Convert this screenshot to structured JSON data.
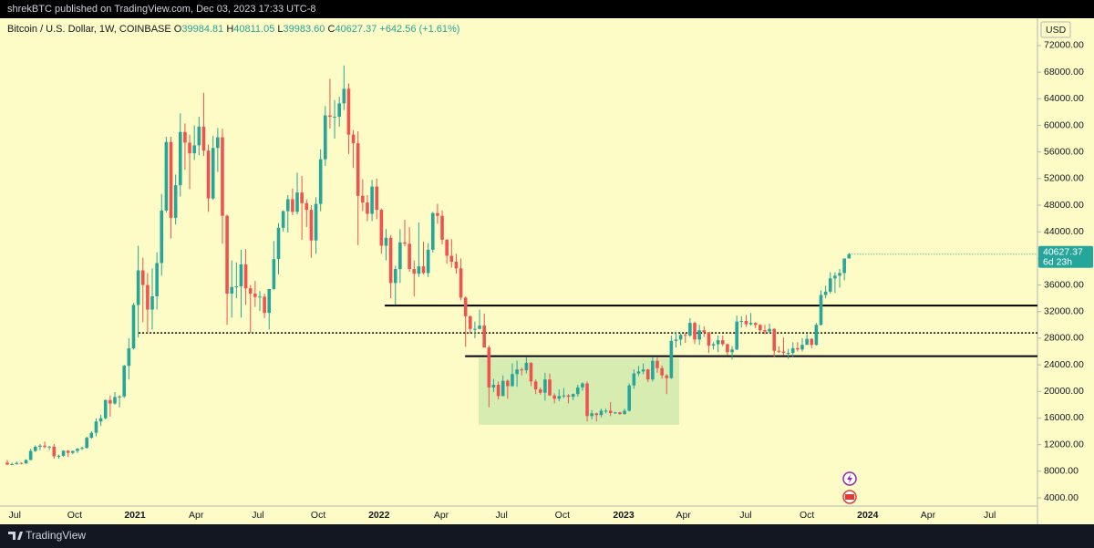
{
  "header": "shrekBTC published on TradingView.com, Dec 03, 2023 17:33 UTC-8",
  "footer": "TradingView",
  "chart_data": {
    "type": "candlestick",
    "legend": {
      "symbol": "Bitcoin / U.S. Dollar, 1W, COINBASE",
      "o": "O",
      "h": "H",
      "l": "L",
      "c": "C",
      "change": "+642.56 (+1.61%)"
    },
    "ohlc_labels": [
      "39984.81",
      "40811.05",
      "39983.60",
      "40627.37"
    ],
    "currency": "USD",
    "countdown": "6d 23h",
    "up_color": "#26a69a",
    "down_color": "#ef5350",
    "xlim": [
      -1.56,
      220.3
    ],
    "xticks": [
      {
        "value": 1.6,
        "label": "Jul"
      },
      {
        "value": 14.4,
        "label": "Oct"
      },
      {
        "value": 27.3,
        "label": "2021"
      },
      {
        "value": 40.4,
        "label": "Apr"
      },
      {
        "value": 53.6,
        "label": "Jul"
      },
      {
        "value": 66.5,
        "label": "Oct"
      },
      {
        "value": 79.5,
        "label": "2022"
      },
      {
        "value": 92.8,
        "label": "Apr"
      },
      {
        "value": 105.7,
        "label": "Jul"
      },
      {
        "value": 118.7,
        "label": "Oct"
      },
      {
        "value": 131.8,
        "label": "2023"
      },
      {
        "value": 144.6,
        "label": "Apr"
      },
      {
        "value": 157.9,
        "label": "Jul"
      },
      {
        "value": 171.0,
        "label": "Oct"
      },
      {
        "value": 184.0,
        "label": "2024"
      },
      {
        "value": 196.9,
        "label": "Apr"
      },
      {
        "value": 210.1,
        "label": "Jul"
      }
    ],
    "ylim": [
      2766,
      76104
    ],
    "yticks": [
      {
        "value": 4000,
        "label": "4000.00"
      },
      {
        "value": 8000,
        "label": "8000.00"
      },
      {
        "value": 12000,
        "label": "12000.00"
      },
      {
        "value": 16000,
        "label": "16000.00"
      },
      {
        "value": 20000,
        "label": "20000.00"
      },
      {
        "value": 24000,
        "label": "24000.00"
      },
      {
        "value": 28000,
        "label": "28000.00"
      },
      {
        "value": 32000,
        "label": "32000.00"
      },
      {
        "value": 36000,
        "label": "36000.00"
      },
      {
        "value": 40000,
        "label": "40000.00"
      },
      {
        "value": 44000,
        "label": "44000.00"
      },
      {
        "value": 48000,
        "label": "48000.00"
      },
      {
        "value": 52000,
        "label": "52000.00"
      },
      {
        "value": 56000,
        "label": "56000.00"
      },
      {
        "value": 60000,
        "label": "60000.00"
      },
      {
        "value": 64000,
        "label": "64000.00"
      },
      {
        "value": 68000,
        "label": "68000.00"
      },
      {
        "value": 72000,
        "label": "72000.00"
      }
    ],
    "levels": [
      {
        "value": 32900,
        "from": 80.7,
        "style": "solid"
      },
      {
        "value": 25300,
        "from": 97.9,
        "style": "solid"
      },
      {
        "value": 28800,
        "from": 28.1,
        "style": "dotted"
      }
    ],
    "zone": {
      "x": [
        100.8,
        143.7
      ],
      "y": [
        15000,
        25000
      ],
      "color": "#d7ecb0"
    },
    "candles": [
      [
        9300,
        9700,
        8900,
        9000
      ],
      [
        9000,
        9300,
        8900,
        9070
      ],
      [
        9070,
        9450,
        9000,
        9250
      ],
      [
        9250,
        9300,
        9050,
        9170
      ],
      [
        9170,
        9800,
        9100,
        9700
      ],
      [
        9700,
        11400,
        9650,
        11050
      ],
      [
        11050,
        11900,
        10900,
        11680
      ],
      [
        11680,
        12100,
        11150,
        11850
      ],
      [
        11850,
        12450,
        11450,
        11650
      ],
      [
        11650,
        11800,
        11200,
        11700
      ],
      [
        11700,
        12100,
        9900,
        10250
      ],
      [
        10250,
        10500,
        9900,
        10330
      ],
      [
        10330,
        11150,
        10200,
        11080
      ],
      [
        11080,
        11200,
        10150,
        10770
      ],
      [
        10770,
        11100,
        10550,
        11050
      ],
      [
        11050,
        11500,
        10750,
        11380
      ],
      [
        11380,
        11700,
        11200,
        11510
      ],
      [
        11510,
        13200,
        11400,
        13030
      ],
      [
        13030,
        14000,
        12900,
        13780
      ],
      [
        13780,
        15950,
        13250,
        15480
      ],
      [
        15480,
        16500,
        14800,
        15960
      ],
      [
        15960,
        18800,
        15800,
        18700
      ],
      [
        18700,
        19400,
        16200,
        18180
      ],
      [
        18180,
        19900,
        18000,
        19150
      ],
      [
        19150,
        19400,
        17600,
        19250
      ],
      [
        19250,
        24000,
        19000,
        23850
      ],
      [
        23850,
        28000,
        21800,
        26480
      ],
      [
        26480,
        33300,
        26300,
        33000
      ],
      [
        33000,
        41900,
        28100,
        38200
      ],
      [
        38200,
        40100,
        30400,
        36000
      ],
      [
        36000,
        37800,
        28800,
        32300
      ],
      [
        32300,
        38500,
        29300,
        34300
      ],
      [
        34300,
        40900,
        32300,
        39300
      ],
      [
        39300,
        49700,
        37400,
        47200
      ],
      [
        47200,
        58300,
        46900,
        57500
      ],
      [
        57500,
        58300,
        43000,
        46100
      ],
      [
        46100,
        52600,
        45100,
        51000
      ],
      [
        51000,
        61800,
        49300,
        59000
      ],
      [
        59000,
        60300,
        53300,
        57400
      ],
      [
        57400,
        58600,
        50400,
        55800
      ],
      [
        55800,
        60000,
        54800,
        57000
      ],
      [
        57000,
        61300,
        55500,
        59800
      ],
      [
        59800,
        64900,
        55400,
        56200
      ],
      [
        56200,
        57100,
        47000,
        49000
      ],
      [
        49000,
        58400,
        48800,
        56600
      ],
      [
        56600,
        59600,
        53000,
        58200
      ],
      [
        58200,
        59500,
        42200,
        46400
      ],
      [
        46400,
        46600,
        30000,
        34700
      ],
      [
        34700,
        39700,
        31100,
        35700
      ],
      [
        35700,
        39400,
        34000,
        35800
      ],
      [
        35800,
        41300,
        31100,
        39100
      ],
      [
        39100,
        41400,
        33000,
        35500
      ],
      [
        35500,
        36000,
        28800,
        34700
      ],
      [
        34700,
        36600,
        32700,
        34200
      ],
      [
        34200,
        35100,
        32100,
        34250
      ],
      [
        34250,
        34700,
        31000,
        31800
      ],
      [
        31800,
        35400,
        29300,
        35400
      ],
      [
        35400,
        42600,
        35300,
        39900
      ],
      [
        39900,
        45300,
        37600,
        44600
      ],
      [
        44600,
        47200,
        44000,
        47100
      ],
      [
        47100,
        49500,
        43900,
        48900
      ],
      [
        48900,
        50500,
        46500,
        47000
      ],
      [
        47000,
        52900,
        46600,
        49900
      ],
      [
        49900,
        52400,
        42800,
        48300
      ],
      [
        48300,
        48900,
        44700,
        47300
      ],
      [
        47300,
        48000,
        40100,
        42700
      ],
      [
        42700,
        49200,
        40700,
        48200
      ],
      [
        48200,
        56400,
        47100,
        54900
      ],
      [
        54900,
        62900,
        53900,
        61500
      ],
      [
        61500,
        67000,
        59500,
        61300
      ],
      [
        61300,
        63800,
        58000,
        61300
      ],
      [
        61300,
        64300,
        59800,
        63300
      ],
      [
        63300,
        69000,
        62300,
        65500
      ],
      [
        65500,
        66300,
        55700,
        58600
      ],
      [
        58600,
        59300,
        53600,
        57300
      ],
      [
        57300,
        59100,
        42000,
        49400
      ],
      [
        49400,
        51900,
        47100,
        48400
      ],
      [
        48400,
        49500,
        45600,
        46700
      ],
      [
        46700,
        51800,
        45600,
        50800
      ],
      [
        50800,
        52000,
        45900,
        47300
      ],
      [
        47300,
        47500,
        40700,
        41900
      ],
      [
        41900,
        44400,
        39700,
        43100
      ],
      [
        43100,
        43500,
        34000,
        36300
      ],
      [
        36300,
        38900,
        33000,
        38400
      ],
      [
        38400,
        44400,
        36300,
        42400
      ],
      [
        42400,
        45800,
        41800,
        42200
      ],
      [
        42200,
        44700,
        38000,
        38400
      ],
      [
        38400,
        39700,
        34300,
        37700
      ],
      [
        37700,
        45400,
        37200,
        38800
      ],
      [
        38800,
        42500,
        37600,
        37800
      ],
      [
        37800,
        42300,
        37200,
        41300
      ],
      [
        41300,
        47000,
        40900,
        46800
      ],
      [
        46800,
        48200,
        45200,
        46400
      ],
      [
        46400,
        47200,
        42100,
        42800
      ],
      [
        42800,
        42900,
        39200,
        40400
      ],
      [
        40400,
        42900,
        38600,
        39500
      ],
      [
        39500,
        40700,
        37700,
        38500
      ],
      [
        38500,
        40000,
        33700,
        34100
      ],
      [
        34100,
        34300,
        26700,
        31300
      ],
      [
        31300,
        31400,
        28700,
        29400
      ],
      [
        29400,
        30500,
        28000,
        29400
      ],
      [
        29400,
        32300,
        29300,
        29900
      ],
      [
        29900,
        31700,
        26600,
        26600
      ],
      [
        26600,
        26900,
        17600,
        20600
      ],
      [
        20600,
        21900,
        19900,
        21000
      ],
      [
        21000,
        21500,
        18800,
        19300
      ],
      [
        19300,
        22400,
        19300,
        21600
      ],
      [
        21600,
        21800,
        18900,
        20800
      ],
      [
        20800,
        24200,
        20700,
        22600
      ],
      [
        22600,
        24600,
        20700,
        23300
      ],
      [
        23300,
        23600,
        22400,
        23200
      ],
      [
        23200,
        25200,
        22700,
        24300
      ],
      [
        24300,
        24400,
        20800,
        21500
      ],
      [
        21500,
        21800,
        19600,
        20300
      ],
      [
        20300,
        20600,
        19500,
        19800
      ],
      [
        19800,
        22800,
        18600,
        21800
      ],
      [
        21800,
        22700,
        19300,
        19400
      ],
      [
        19400,
        19700,
        18200,
        18900
      ],
      [
        18900,
        20300,
        18500,
        19300
      ],
      [
        19300,
        20500,
        19000,
        19400
      ],
      [
        19400,
        19600,
        18200,
        19200
      ],
      [
        19200,
        19700,
        18700,
        19600
      ],
      [
        19600,
        21000,
        19200,
        20600
      ],
      [
        20600,
        21400,
        20100,
        21200
      ],
      [
        21200,
        21500,
        15500,
        16300
      ],
      [
        16300,
        17200,
        15800,
        16700
      ],
      [
        16700,
        16800,
        15500,
        16450
      ],
      [
        16450,
        17400,
        16100,
        17100
      ],
      [
        17100,
        17400,
        16700,
        17100
      ],
      [
        17100,
        18400,
        16300,
        16750
      ],
      [
        16750,
        16950,
        16600,
        16850
      ],
      [
        16850,
        16950,
        16500,
        16600
      ],
      [
        16600,
        17400,
        16500,
        17100
      ],
      [
        17100,
        21200,
        17000,
        20900
      ],
      [
        20900,
        23300,
        20400,
        22700
      ],
      [
        22700,
        23800,
        22300,
        23000
      ],
      [
        23000,
        24200,
        22600,
        23300
      ],
      [
        23300,
        23400,
        21400,
        21800
      ],
      [
        21800,
        25200,
        21500,
        24600
      ],
      [
        24600,
        25100,
        22800,
        23500
      ],
      [
        23500,
        23900,
        21900,
        22400
      ],
      [
        22400,
        22600,
        19600,
        22000
      ],
      [
        22000,
        28400,
        21900,
        27600
      ],
      [
        27600,
        28900,
        26600,
        27800
      ],
      [
        27800,
        28700,
        26900,
        28500
      ],
      [
        28500,
        28800,
        27300,
        28400
      ],
      [
        28400,
        31000,
        28200,
        30300
      ],
      [
        30300,
        30500,
        27100,
        27800
      ],
      [
        27800,
        30000,
        27000,
        29200
      ],
      [
        29200,
        29800,
        28200,
        28900
      ],
      [
        28900,
        28900,
        25800,
        26900
      ],
      [
        26900,
        27400,
        26300,
        27100
      ],
      [
        27100,
        28400,
        25900,
        27700
      ],
      [
        27700,
        28400,
        26800,
        27100
      ],
      [
        27100,
        27200,
        25400,
        25900
      ],
      [
        25900,
        26800,
        24800,
        26300
      ],
      [
        26300,
        31400,
        26200,
        30500
      ],
      [
        30500,
        31300,
        29600,
        30600
      ],
      [
        30600,
        31500,
        29700,
        30100
      ],
      [
        30100,
        31800,
        29900,
        30300
      ],
      [
        30300,
        30400,
        29500,
        30000
      ],
      [
        30000,
        30100,
        28900,
        29200
      ],
      [
        29200,
        30000,
        28600,
        29000
      ],
      [
        29000,
        30200,
        28800,
        29400
      ],
      [
        29400,
        29500,
        25200,
        26100
      ],
      [
        26100,
        26800,
        25800,
        26000
      ],
      [
        26000,
        28100,
        25400,
        25800
      ],
      [
        25800,
        26400,
        24900,
        25800
      ],
      [
        25800,
        27400,
        25100,
        26500
      ],
      [
        26500,
        27400,
        26000,
        26300
      ],
      [
        26300,
        28000,
        26000,
        27000
      ],
      [
        27000,
        28600,
        27000,
        27900
      ],
      [
        27900,
        28000,
        26500,
        27000
      ],
      [
        27000,
        30300,
        26900,
        30000
      ],
      [
        30000,
        35200,
        29900,
        34500
      ],
      [
        34500,
        35900,
        34000,
        35000
      ],
      [
        35000,
        37900,
        34700,
        37000
      ],
      [
        37000,
        37900,
        34800,
        37400
      ],
      [
        37400,
        38400,
        35600,
        37800
      ],
      [
        37800,
        40000,
        36700,
        39985
      ],
      [
        39984.81,
        40811.05,
        39983.6,
        40627.37
      ]
    ]
  }
}
